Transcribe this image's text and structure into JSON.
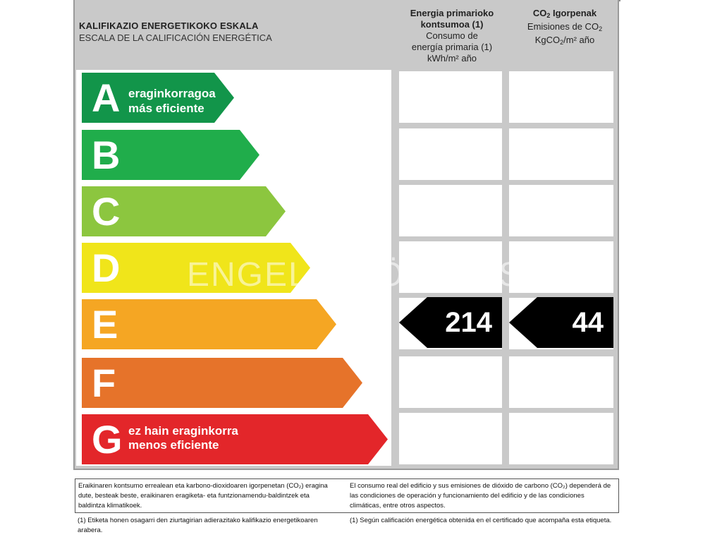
{
  "header": {
    "title_eu": "KALIFIKAZIO ENERGETIKOKO ESKALA",
    "title_es": "ESCALA DE LA CALIFICACIÓN ENERGÉTICA",
    "col1_eu_line1": "Energia primarioko",
    "col1_eu_line2": "kontsumoa (1)",
    "col1_es_line1": "Consumo de",
    "col1_es_line2": "energía primaria (1)",
    "col1_unit": "kWh/m² año",
    "col2_eu_pre": "CO",
    "col2_eu_post": " Igorpenak",
    "col2_es_pre": "Emisiones de CO",
    "col2_unit_pre": "KgCO",
    "col2_unit_post": "/m² año",
    "sub2": "2"
  },
  "scale": [
    {
      "letter": "A",
      "label_eu": "eraginkorragoa",
      "label_es": "más eficiente",
      "color": "#12954a"
    },
    {
      "letter": "B",
      "label_eu": "",
      "label_es": "",
      "color": "#20ad4b"
    },
    {
      "letter": "C",
      "label_eu": "",
      "label_es": "",
      "color": "#8cc63f"
    },
    {
      "letter": "D",
      "label_eu": "",
      "label_es": "",
      "color": "#f0e51a"
    },
    {
      "letter": "E",
      "label_eu": "",
      "label_es": "",
      "color": "#f5a623"
    },
    {
      "letter": "F",
      "label_eu": "",
      "label_es": "",
      "color": "#e6732a"
    },
    {
      "letter": "G",
      "label_eu": "ez hain eraginkorra",
      "label_es": "menos eficiente",
      "color": "#e3262a"
    }
  ],
  "watermark": "ENGEL & VÖLKERS",
  "rating": {
    "row_letter": "E",
    "primary_energy": "214",
    "co2_emissions": "44"
  },
  "footer": {
    "eu_main": "Eraikinaren kontsumo errealean eta karbono-dioxidoaren igorpenetan (CO₂) eragina dute, besteak beste, eraikinaren eragiketa- eta funtzionamendu-baldintzek eta baldintza klimatikoek.",
    "es_main": "El consumo real del edificio y sus emisiones de dióxido de carbono (CO₂) dependerá de las condiciones de operación y funcionamiento del edificio y de las condiciones climáticas, entre otros aspectos.",
    "eu_note": "(1) Etiketa honen osagarri den ziurtagirian adierazitako kalifikazio energetikoaren arabera.",
    "es_note": "(1) Según calificación energética obtenida en el certificado que acompaña esta etiqueta."
  }
}
